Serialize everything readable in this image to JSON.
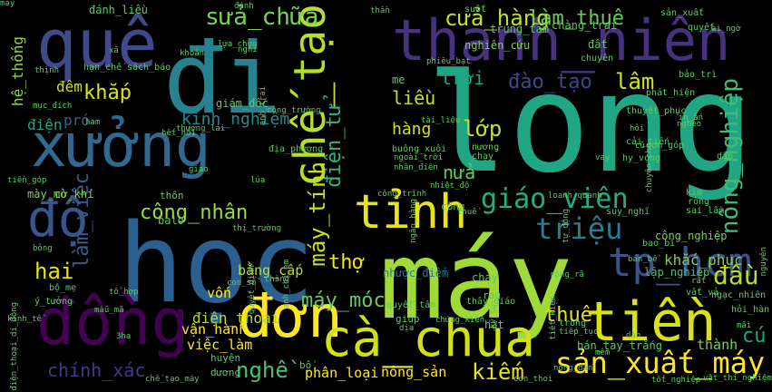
{
  "word_cloud": {
    "background": "#000000",
    "words": [
      {
        "text": "long",
        "color": "#21a685",
        "rotate": 0
      },
      {
        "text": "học",
        "color": "#2a5f8f",
        "rotate": 0
      },
      {
        "text": "máy",
        "color": "#a0da39",
        "rotate": 0
      },
      {
        "text": "đi",
        "color": "#26828e",
        "rotate": 0
      },
      {
        "text": "quê",
        "color": "#3e4a89",
        "rotate": 0
      },
      {
        "text": "thanh_niên",
        "color": "#46327e",
        "rotate": 0
      },
      {
        "text": "xưởng",
        "color": "#31688e",
        "rotate": 0
      },
      {
        "text": "đồng",
        "color": "#440154",
        "rotate": 0
      },
      {
        "text": "đơn",
        "color": "#fde725",
        "rotate": 0
      },
      {
        "text": "cà_chua",
        "color": "#d0e11c",
        "rotate": 0
      },
      {
        "text": "tiền",
        "color": "#d8e219",
        "rotate": 0
      },
      {
        "text": "tỉnh",
        "color": "#e7e419",
        "rotate": 0
      },
      {
        "text": "chế_tạo",
        "color": "#b5de2b",
        "rotate": -90
      },
      {
        "text": "tp_hcm",
        "color": "#3b528b",
        "rotate": 0
      },
      {
        "text": "độ",
        "color": "#3a548c",
        "rotate": 0
      },
      {
        "text": "sản_xuất_máy",
        "color": "#fde725",
        "rotate": 0
      },
      {
        "text": "chính_xác",
        "color": "#443983",
        "rotate": 0
      },
      {
        "text": "giáo_viên",
        "color": "#25ac82",
        "rotate": 0
      },
      {
        "text": "công_nhân",
        "color": "#9bd93c",
        "rotate": 0
      },
      {
        "text": "nông_nghiệp",
        "color": "#3fbc73",
        "rotate": -90
      },
      {
        "text": "máy_tính",
        "color": "#c8e020",
        "rotate": -90
      },
      {
        "text": "làm_việc",
        "color": "#375b8d",
        "rotate": -90
      },
      {
        "text": "hệ_thống",
        "color": "#8bd646",
        "rotate": -90
      },
      {
        "text": "điện_tử",
        "color": "#34b679",
        "rotate": -90
      },
      {
        "text": "kinh_nghiệm",
        "color": "#23898e",
        "rotate": 0
      },
      {
        "text": "sửa_chữa",
        "color": "#7ad151",
        "rotate": 0
      },
      {
        "text": "cửa_hàng",
        "color": "#c2df23",
        "rotate": 0
      },
      {
        "text": "làm_thuê",
        "color": "#65cb5e",
        "rotate": 0
      },
      {
        "text": "đào_tạo",
        "color": "#404688",
        "rotate": 0
      },
      {
        "text": "khắp",
        "color": "#dde318",
        "rotate": 0
      },
      {
        "text": "lâm",
        "color": "#d2e21b",
        "rotate": 0
      },
      {
        "text": "hai",
        "color": "#e5e419",
        "rotate": 0
      },
      {
        "text": "thợ",
        "color": "#ece51b",
        "rotate": 0
      },
      {
        "text": "nghề",
        "color": "#4ac16d",
        "rotate": 0
      },
      {
        "text": "triệu",
        "color": "#287d8e",
        "rotate": 0
      },
      {
        "text": "đầu",
        "color": "#b8de29",
        "rotate": 0
      },
      {
        "text": "kiếm",
        "color": "#e2e418",
        "rotate": 0
      },
      {
        "text": "máy_móc",
        "color": "#63cb5f",
        "rotate": 0
      },
      {
        "text": "lớp",
        "color": "#c8e020",
        "rotate": 0
      },
      {
        "text": "liều",
        "color": "#c0df25",
        "rotate": 0
      },
      {
        "text": "hàng",
        "color": "#d5e21a",
        "rotate": 0
      },
      {
        "text": "trời",
        "color": "#1fa187",
        "rotate": 0
      },
      {
        "text": "pró",
        "color": "#355f8d",
        "rotate": 0
      },
      {
        "text": "đêm",
        "color": "#d0e11c",
        "rotate": 0
      },
      {
        "text": "điện",
        "color": "#20a386",
        "rotate": 0
      },
      {
        "text": "cú",
        "color": "#20a386",
        "rotate": 0
      },
      {
        "text": "thuê",
        "color": "#e2e418",
        "rotate": 0
      },
      {
        "text": "nửa",
        "color": "#65cb5e",
        "rotate": 0
      },
      {
        "text": "điện_thoại",
        "color": "#addc30",
        "rotate": 0
      },
      {
        "text": "vận_hành",
        "color": "#fde725",
        "rotate": 0
      },
      {
        "text": "bằng_cấp",
        "color": "#b5de2b",
        "rotate": 0
      },
      {
        "text": "vốn",
        "color": "#fde725",
        "rotate": 0
      },
      {
        "text": "phân_loại",
        "color": "#fde725",
        "rotate": 0
      },
      {
        "text": "nông_sản",
        "color": "#fde725",
        "rotate": 0
      },
      {
        "text": "việc_làm",
        "color": "#fde725",
        "rotate": 0
      },
      {
        "text": "cờ_khí",
        "color": "#7ad151",
        "rotate": 0
      },
      {
        "text": "mày_mò",
        "color": "#7ad151",
        "rotate": 0
      },
      {
        "text": "công_nghiệp",
        "color": "#7ad151",
        "rotate": 0
      },
      {
        "text": "khắc_phục",
        "color": "#7ad151",
        "rotate": 0
      },
      {
        "text": "thành",
        "color": "#7ad151",
        "rotate": 0
      },
      {
        "text": "lập_nghiệp",
        "color": "#4ac16d",
        "rotate": 0
      },
      {
        "text": "nhược_điểm",
        "color": "#2a788e",
        "rotate": 0
      },
      {
        "text": "chạy",
        "color": "#5ec962",
        "rotate": 0
      },
      {
        "text": "huyện",
        "color": "#5ec962",
        "rotate": 0
      },
      {
        "text": "dương",
        "color": "#5ec962",
        "rotate": 0
      },
      {
        "text": "bán_tay_trắng",
        "color": "#5ec962",
        "rotate": 0
      },
      {
        "text": "đánh_liều",
        "color": "#5ec962",
        "rotate": 0
      },
      {
        "text": "chàng_trai",
        "color": "#5ec962",
        "rotate": 0
      },
      {
        "text": "trung_tâm",
        "color": "#5ec962",
        "rotate": 0
      },
      {
        "text": "nghiên_cứu",
        "color": "#7ad151",
        "rotate": 0
      },
      {
        "text": "lựa_chọn",
        "color": "#5ec962",
        "rotate": 0
      },
      {
        "text": "giám_đốc",
        "color": "#5ec962",
        "rotate": 0
      },
      {
        "text": "thương_lái",
        "color": "#5ec962",
        "rotate": 0
      },
      {
        "text": "chuyên",
        "color": "#5ec962",
        "rotate": 0
      },
      {
        "text": "bảo_trì",
        "color": "#5ec962",
        "rotate": 0
      },
      {
        "text": "phát_hiện",
        "color": "#5ec962",
        "rotate": 0
      },
      {
        "text": "thuyết_phục",
        "color": "#5ec962",
        "rotate": 0
      },
      {
        "text": "quyết",
        "color": "#5ec962",
        "rotate": 0
      },
      {
        "text": "sản_xuất",
        "color": "#5ec962",
        "rotate": 0
      },
      {
        "text": "suốt",
        "color": "#5ec962",
        "rotate": 0
      },
      {
        "text": "thần",
        "color": "#5ec962",
        "rotate": 0
      },
      {
        "text": "ai_ngờ",
        "color": "#5ec962",
        "rotate": 0
      },
      {
        "text": "đất",
        "color": "#5ec962",
        "rotate": 0
      },
      {
        "text": "me",
        "color": "#5ec962",
        "rotate": 0
      },
      {
        "text": "hạn_chế",
        "color": "#5ec962",
        "rotate": 0
      },
      {
        "text": "sách_báo",
        "color": "#5ec962",
        "rotate": 0
      },
      {
        "text": "khoản",
        "color": "#5ec962",
        "rotate": 0
      },
      {
        "text": "thịnh",
        "color": "#5ec962",
        "rotate": 0
      },
      {
        "text": "mục_đích",
        "color": "#5ec962",
        "rotate": 0
      },
      {
        "text": "địa_phương",
        "color": "#5ec962",
        "rotate": 0
      },
      {
        "text": "phiêu_bạt",
        "color": "#5ec962",
        "rotate": 0
      },
      {
        "text": "suy_nghĩ",
        "color": "#5ec962",
        "rotate": 0
      },
      {
        "text": "kim",
        "color": "#5ec962",
        "rotate": 0
      },
      {
        "text": "rồng",
        "color": "#5ec962",
        "rotate": 0
      },
      {
        "text": "sai_lầm",
        "color": "#5ec962",
        "rotate": 0
      },
      {
        "text": "dập",
        "color": "#5ec962",
        "rotate": 0
      },
      {
        "text": "hy_vọng",
        "color": "#5ec962",
        "rotate": 0
      },
      {
        "text": "cải_tiến",
        "color": "#5ec962",
        "rotate": 0
      },
      {
        "text": "gom_góp",
        "color": "#5ec962",
        "rotate": 0
      },
      {
        "text": "ngạc_nhiên",
        "color": "#5ec962",
        "rotate": 0
      },
      {
        "text": "hỏi_hàn",
        "color": "#5ec962",
        "rotate": 0
      },
      {
        "text": "mãi",
        "color": "#5ec962",
        "rotate": 0
      },
      {
        "text": "rất",
        "color": "#5ec962",
        "rotate": 0
      },
      {
        "text": "vất_vả",
        "color": "#5ec962",
        "rotate": 0
      },
      {
        "text": "bao_bì",
        "color": "#5ec962",
        "rotate": 0
      },
      {
        "text": "bán_bề",
        "color": "#5ec962",
        "rotate": 0
      },
      {
        "text": "nguyên",
        "color": "#5ec962",
        "rotate": -90
      },
      {
        "text": "tổt_nghiệp",
        "color": "#5ec962",
        "rotate": 0
      },
      {
        "text": "vật_thí_nghiệm",
        "color": "#5ec962",
        "rotate": 0
      },
      {
        "text": "chế_tạo_máy",
        "color": "#5ec962",
        "rotate": 0
      },
      {
        "text": "con_thoi",
        "color": "#5ec962",
        "rotate": 0
      },
      {
        "text": "nông_dân",
        "color": "#5ec962",
        "rotate": 0
      },
      {
        "text": "chứng_kiến",
        "color": "#5ec962",
        "rotate": 0
      },
      {
        "text": "giúp",
        "color": "#5ec962",
        "rotate": 0
      },
      {
        "text": "hạt",
        "color": "#5ec962",
        "rotate": 0
      },
      {
        "text": "trồng",
        "color": "#5ec962",
        "rotate": 0
      },
      {
        "text": "bố",
        "color": "#5ec962",
        "rotate": 0
      },
      {
        "text": "quyết_tâm",
        "color": "#5ec962",
        "rotate": 0
      },
      {
        "text": "thầy_giáo",
        "color": "#5ec962",
        "rotate": 0
      },
      {
        "text": "mẫu_mã",
        "color": "#5ec962",
        "rotate": 0
      },
      {
        "text": "ý_tưởng",
        "color": "#5ec962",
        "rotate": 0
      },
      {
        "text": "bộ_mẹ",
        "color": "#5ec962",
        "rotate": 0
      },
      {
        "text": "con_sổ",
        "color": "#5ec962",
        "rotate": 0
      },
      {
        "text": "chàng",
        "color": "#5ec962",
        "rotate": 0
      },
      {
        "text": "thôn",
        "color": "#5ec962",
        "rotate": 0
      },
      {
        "text": "balo",
        "color": "#5ec962",
        "rotate": 0
      },
      {
        "text": "công_trình",
        "color": "#5ec962",
        "rotate": 0
      },
      {
        "text": "công",
        "color": "#5ec962",
        "rotate": 0
      },
      {
        "text": "tự_động",
        "color": "#5ec962",
        "rotate": -90
      },
      {
        "text": "vay",
        "color": "#5ec962",
        "rotate": 0
      },
      {
        "text": "loanh_quanh",
        "color": "#5ec962",
        "rotate": 0
      },
      {
        "text": "rau",
        "color": "#5ec962",
        "rotate": 0
      },
      {
        "text": "nương",
        "color": "#5ec962",
        "rotate": 0
      },
      {
        "text": "chạy",
        "color": "#5ec962",
        "rotate": 0
      },
      {
        "text": "xã",
        "color": "#5ec962",
        "rotate": 0
      },
      {
        "text": "ham",
        "color": "#5ec962",
        "rotate": 0
      },
      {
        "text": "buông_xuôi",
        "color": "#5ec962",
        "rotate": 0
      },
      {
        "text": "ngoài_trời",
        "color": "#5ec962",
        "rotate": 0
      },
      {
        "text": "nhân_điên",
        "color": "#5ec962",
        "rotate": 0
      },
      {
        "text": "giao",
        "color": "#5ec962",
        "rotate": 0
      },
      {
        "text": "lúa",
        "color": "#5ec962",
        "rotate": 0
      },
      {
        "text": "hỏi",
        "color": "#5ec962",
        "rotate": 0
      },
      {
        "text": "in_ấn",
        "color": "#5ec962",
        "rotate": 0
      },
      {
        "text": "cũ",
        "color": "#5ec962",
        "rotate": 0
      },
      {
        "text": "3ha",
        "color": "#5ec962",
        "rotate": 0
      },
      {
        "text": "mềm",
        "color": "#5ec962",
        "rotate": 0
      },
      {
        "text": "dặn",
        "color": "#5ec962",
        "rotate": 0
      },
      {
        "text": "đánh",
        "color": "#5ec962",
        "rotate": 0
      },
      {
        "text": "nghỉ",
        "color": "#5ec962",
        "rotate": 0
      },
      {
        "text": "anh_trai",
        "color": "#5ec962",
        "rotate": -90
      },
      {
        "text": "nghèo",
        "color": "#5ec962",
        "rotate": 0
      },
      {
        "text": "chuyên_cho",
        "color": "#5ec962",
        "rotate": -90
      },
      {
        "text": "quyết_định",
        "color": "#5ec962",
        "rotate": -90
      },
      {
        "text": "điện_thoại_di_động",
        "color": "#5ec962",
        "rotate": -90
      },
      {
        "text": "kỹ_sư",
        "color": "#5ec962",
        "rotate": -90
      },
      {
        "text": "tiết_kiệm",
        "color": "#5ec962",
        "rotate": -90
      },
      {
        "text": "thị_trường",
        "color": "#5ec962",
        "rotate": 0
      },
      {
        "text": "công_trường",
        "color": "#5ec962",
        "rotate": 0
      },
      {
        "text": "hết_hồi",
        "color": "#5ec962",
        "rotate": 0
      },
      {
        "text": "tài_liệu",
        "color": "#5ec962",
        "rotate": 0
      },
      {
        "text": "rộng_rã",
        "color": "#5ec962",
        "rotate": 0
      },
      {
        "text": "ngân_hàng",
        "color": "#5ec962",
        "rotate": -90
      },
      {
        "text": "nhiệt_độ",
        "color": "#5ec962",
        "rotate": 0
      },
      {
        "text": "dịa",
        "color": "#5ec962",
        "rotate": 0
      },
      {
        "text": "tổ_hợp",
        "color": "#5ec962",
        "rotate": 0
      },
      {
        "text": "tiền_góp",
        "color": "#5ec962",
        "rotate": 0
      },
      {
        "text": "anh_chị_em",
        "color": "#5ec962",
        "rotate": -90
      },
      {
        "text": "tiếp_tục",
        "color": "#5ec962",
        "rotate": 0
      },
      {
        "text": "thuế",
        "color": "#5ec962",
        "rotate": 0
      },
      {
        "text": "kinh_tế",
        "color": "#5ec962",
        "rotate": 0
      },
      {
        "text": "bỏng",
        "color": "#5ec962",
        "rotate": 0
      },
      {
        "text": "máy",
        "color": "#5ec962",
        "rotate": 0
      }
    ]
  }
}
